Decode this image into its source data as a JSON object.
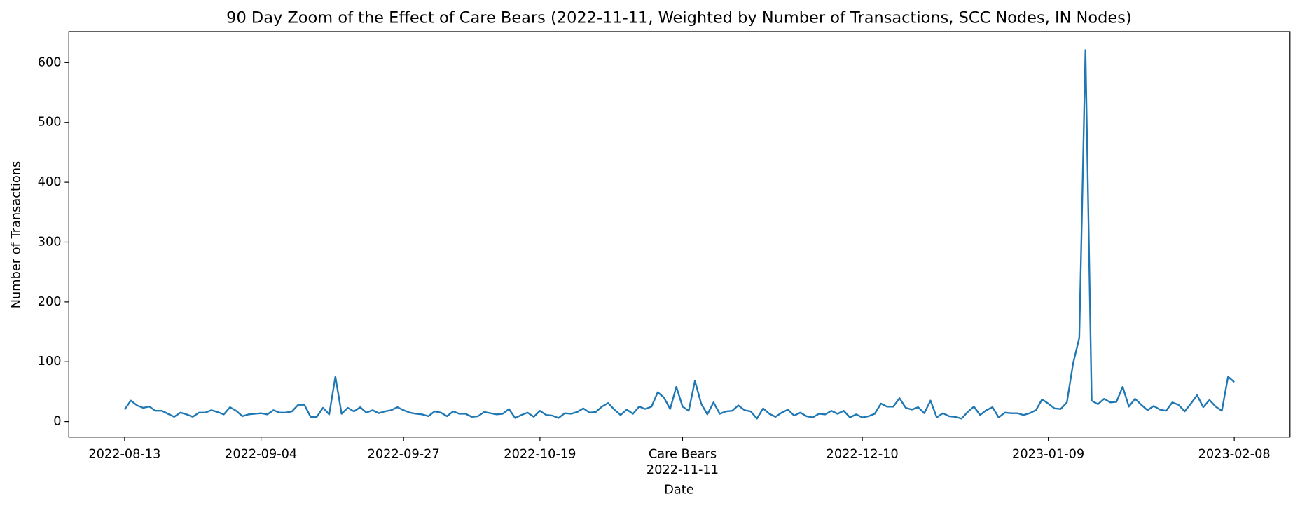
{
  "chart_data": {
    "type": "line",
    "title": "90 Day Zoom of the Effect of Care Bears (2022-11-11, Weighted by Number of Transactions, SCC Nodes, IN Nodes)",
    "x_label": "Date",
    "y_label": "Number of Transactions",
    "color": "#1f77b4",
    "x": [
      "2022-08-13",
      "2022-08-14",
      "2022-08-15",
      "2022-08-16",
      "2022-08-17",
      "2022-08-18",
      "2022-08-19",
      "2022-08-20",
      "2022-08-21",
      "2022-08-22",
      "2022-08-23",
      "2022-08-24",
      "2022-08-25",
      "2022-08-26",
      "2022-08-27",
      "2022-08-28",
      "2022-08-29",
      "2022-08-30",
      "2022-08-31",
      "2022-09-01",
      "2022-09-02",
      "2022-09-03",
      "2022-09-04",
      "2022-09-05",
      "2022-09-06",
      "2022-09-07",
      "2022-09-08",
      "2022-09-09",
      "2022-09-10",
      "2022-09-11",
      "2022-09-12",
      "2022-09-13",
      "2022-09-14",
      "2022-09-15",
      "2022-09-16",
      "2022-09-17",
      "2022-09-18",
      "2022-09-19",
      "2022-09-20",
      "2022-09-21",
      "2022-09-22",
      "2022-09-23",
      "2022-09-24",
      "2022-09-25",
      "2022-09-26",
      "2022-09-27",
      "2022-09-28",
      "2022-09-29",
      "2022-09-30",
      "2022-10-01",
      "2022-10-02",
      "2022-10-03",
      "2022-10-04",
      "2022-10-05",
      "2022-10-06",
      "2022-10-07",
      "2022-10-08",
      "2022-10-09",
      "2022-10-10",
      "2022-10-11",
      "2022-10-12",
      "2022-10-13",
      "2022-10-14",
      "2022-10-15",
      "2022-10-16",
      "2022-10-17",
      "2022-10-18",
      "2022-10-19",
      "2022-10-20",
      "2022-10-21",
      "2022-10-22",
      "2022-10-23",
      "2022-10-24",
      "2022-10-25",
      "2022-10-26",
      "2022-10-27",
      "2022-10-28",
      "2022-10-29",
      "2022-10-30",
      "2022-10-31",
      "2022-11-01",
      "2022-11-02",
      "2022-11-03",
      "2022-11-04",
      "2022-11-05",
      "2022-11-06",
      "2022-11-07",
      "2022-11-08",
      "2022-11-09",
      "2022-11-10",
      "2022-11-11",
      "2022-11-12",
      "2022-11-13",
      "2022-11-14",
      "2022-11-15",
      "2022-11-16",
      "2022-11-17",
      "2022-11-18",
      "2022-11-19",
      "2022-11-20",
      "2022-11-21",
      "2022-11-22",
      "2022-11-23",
      "2022-11-24",
      "2022-11-25",
      "2022-11-26",
      "2022-11-27",
      "2022-11-28",
      "2022-11-29",
      "2022-11-30",
      "2022-12-01",
      "2022-12-02",
      "2022-12-03",
      "2022-12-04",
      "2022-12-05",
      "2022-12-06",
      "2022-12-07",
      "2022-12-08",
      "2022-12-09",
      "2022-12-10",
      "2022-12-11",
      "2022-12-12",
      "2022-12-13",
      "2022-12-14",
      "2022-12-15",
      "2022-12-16",
      "2022-12-17",
      "2022-12-18",
      "2022-12-19",
      "2022-12-20",
      "2022-12-21",
      "2022-12-22",
      "2022-12-23",
      "2022-12-24",
      "2022-12-25",
      "2022-12-26",
      "2022-12-27",
      "2022-12-28",
      "2022-12-29",
      "2022-12-30",
      "2022-12-31",
      "2023-01-01",
      "2023-01-02",
      "2023-01-03",
      "2023-01-04",
      "2023-01-05",
      "2023-01-06",
      "2023-01-07",
      "2023-01-08",
      "2023-01-09",
      "2023-01-10",
      "2023-01-11",
      "2023-01-12",
      "2023-01-13",
      "2023-01-14",
      "2023-01-15",
      "2023-01-16",
      "2023-01-17",
      "2023-01-18",
      "2023-01-19",
      "2023-01-20",
      "2023-01-21",
      "2023-01-22",
      "2023-01-23",
      "2023-01-24",
      "2023-01-25",
      "2023-01-26",
      "2023-01-27",
      "2023-01-28",
      "2023-01-29",
      "2023-01-30",
      "2023-01-31",
      "2023-02-01",
      "2023-02-02",
      "2023-02-03",
      "2023-02-04",
      "2023-02-05",
      "2023-02-06",
      "2023-02-07",
      "2023-02-08"
    ],
    "values": [
      20,
      35,
      27,
      23,
      25,
      18,
      18,
      13,
      8,
      15,
      12,
      8,
      15,
      15,
      19,
      16,
      12,
      24,
      18,
      9,
      12,
      13,
      14,
      12,
      19,
      15,
      15,
      17,
      28,
      28,
      8,
      8,
      23,
      12,
      75,
      13,
      23,
      17,
      24,
      15,
      19,
      14,
      17,
      19,
      24,
      19,
      15,
      13,
      12,
      9,
      17,
      15,
      9,
      17,
      13,
      13,
      8,
      9,
      16,
      14,
      12,
      13,
      21,
      6,
      11,
      15,
      8,
      18,
      11,
      10,
      6,
      14,
      13,
      16,
      22,
      15,
      16,
      25,
      31,
      20,
      11,
      20,
      13,
      25,
      21,
      25,
      49,
      40,
      21,
      58,
      25,
      18,
      68,
      30,
      12,
      32,
      13,
      17,
      18,
      27,
      19,
      17,
      5,
      22,
      13,
      8,
      15,
      20,
      10,
      15,
      9,
      7,
      13,
      12,
      18,
      13,
      18,
      7,
      12,
      7,
      9,
      13,
      30,
      25,
      25,
      39,
      23,
      20,
      24,
      14,
      35,
      7,
      14,
      9,
      8,
      5,
      16,
      25,
      11,
      19,
      24,
      7,
      15,
      14,
      14,
      11,
      14,
      19,
      37,
      30,
      22,
      21,
      32,
      97,
      140,
      621,
      35,
      29,
      38,
      32,
      33,
      58,
      25,
      38,
      28,
      19,
      26,
      20,
      18,
      32,
      28,
      17,
      30,
      44,
      24,
      36,
      25,
      18,
      75,
      66
    ],
    "xlim": [
      "2022-08-04",
      "2023-02-17"
    ],
    "xticks": [
      "2022-08-13",
      "2022-09-04",
      "2022-09-27",
      "2022-10-19",
      "2022-11-11",
      "2022-12-10",
      "2023-01-09",
      "2023-02-08"
    ],
    "ylim": [
      -26,
      652
    ],
    "yticks": [
      0,
      100,
      200,
      300,
      400,
      500,
      600
    ],
    "annotations": [
      {
        "x": "2022-11-11",
        "text": "Care Bears"
      }
    ]
  }
}
